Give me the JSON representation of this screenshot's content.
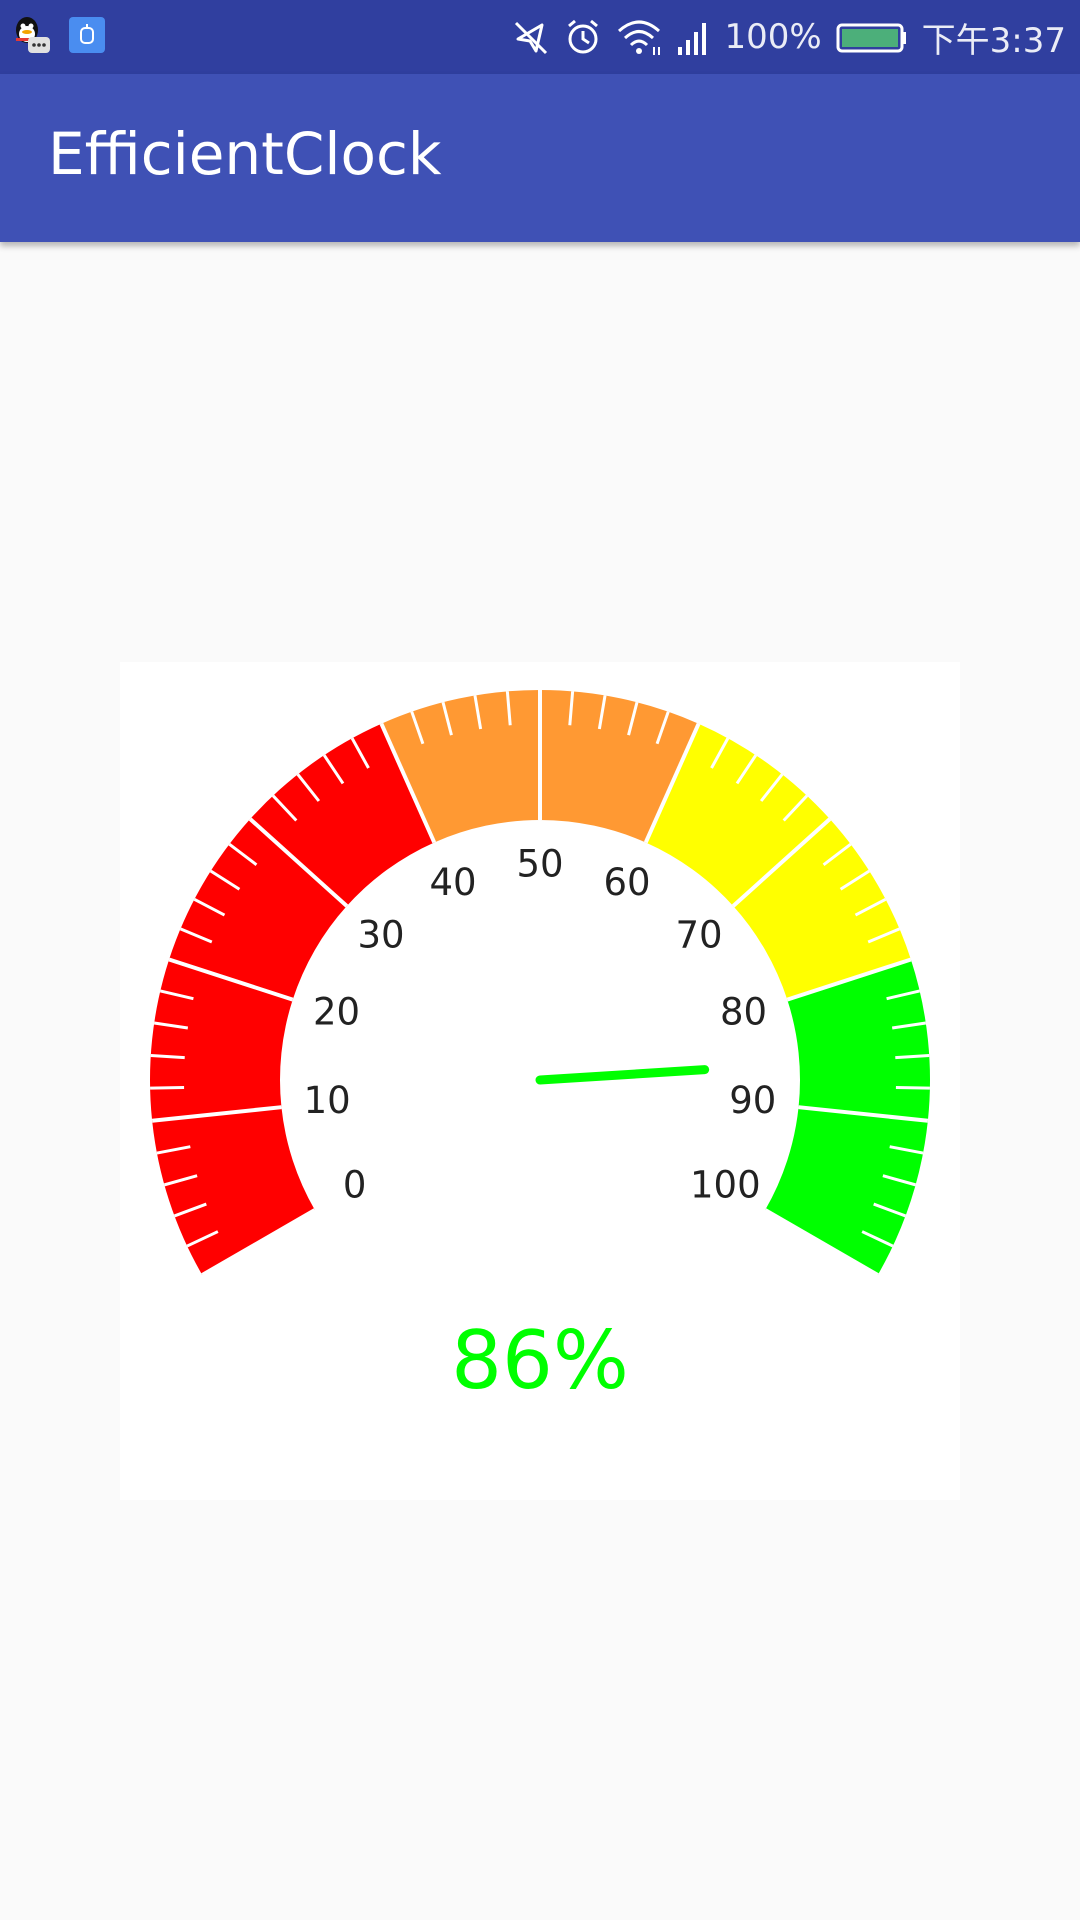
{
  "status_bar": {
    "left_icons": [
      "qq-icon",
      "app-notification-icon"
    ],
    "battery_percent_text": "100%",
    "battery_level": 1.0,
    "time": "下午3:37",
    "icons": [
      "mute-icon",
      "alarm-icon",
      "wifi-icon",
      "signal-icon",
      "battery-icon"
    ]
  },
  "app_bar": {
    "title": "EfficientClock"
  },
  "gauge": {
    "min": 0,
    "max": 100,
    "value": 86,
    "value_text": "86%",
    "value_color": "#00ff00",
    "needle_color": "#00ff00",
    "sweep_degrees": 240,
    "labels": [
      "0",
      "10",
      "20",
      "30",
      "40",
      "50",
      "60",
      "70",
      "80",
      "90",
      "100"
    ],
    "label_values": [
      0,
      10,
      20,
      30,
      40,
      50,
      60,
      70,
      80,
      90,
      100
    ],
    "major_step": 10,
    "minor_step": 2,
    "segments": [
      {
        "from": 0,
        "to": 40,
        "color": "#ff0000"
      },
      {
        "from": 40,
        "to": 60,
        "color": "#ff9933"
      },
      {
        "from": 60,
        "to": 80,
        "color": "#ffff00"
      },
      {
        "from": 80,
        "to": 100,
        "color": "#00ff00"
      }
    ]
  }
}
